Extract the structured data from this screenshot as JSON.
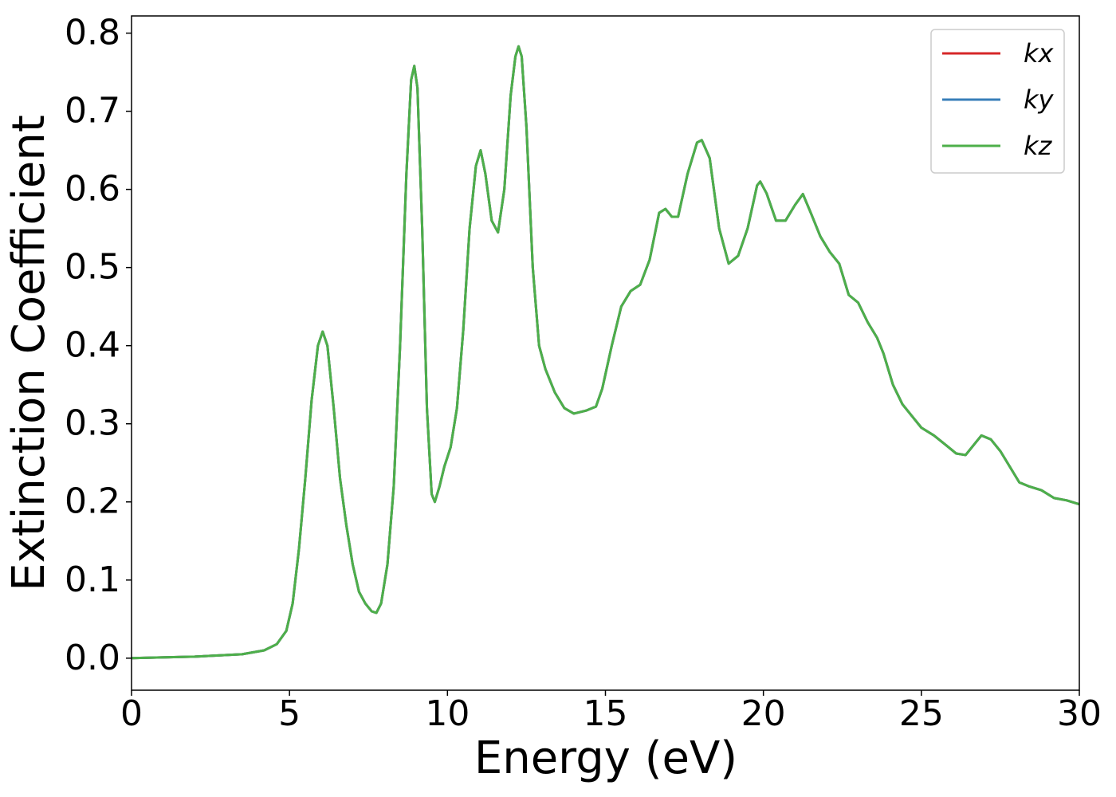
{
  "chart_data": {
    "type": "line",
    "x_label": "Energy (eV)",
    "y_label": "Extinction Coefficient",
    "x": [
      0,
      2,
      3.5,
      4.2,
      4.6,
      4.9,
      5.1,
      5.3,
      5.5,
      5.7,
      5.9,
      6.05,
      6.2,
      6.4,
      6.6,
      6.8,
      7.0,
      7.2,
      7.4,
      7.6,
      7.75,
      7.9,
      8.1,
      8.3,
      8.5,
      8.7,
      8.85,
      8.95,
      9.05,
      9.2,
      9.35,
      9.5,
      9.6,
      9.75,
      9.9,
      10.1,
      10.3,
      10.5,
      10.7,
      10.9,
      11.05,
      11.2,
      11.4,
      11.6,
      11.8,
      12.0,
      12.15,
      12.25,
      12.35,
      12.5,
      12.7,
      12.9,
      13.1,
      13.4,
      13.7,
      14.0,
      14.4,
      14.7,
      14.9,
      15.2,
      15.5,
      15.8,
      16.1,
      16.4,
      16.7,
      16.9,
      17.1,
      17.3,
      17.6,
      17.9,
      18.05,
      18.3,
      18.6,
      18.9,
      19.2,
      19.5,
      19.8,
      19.9,
      20.1,
      20.4,
      20.7,
      21.0,
      21.25,
      21.5,
      21.8,
      22.1,
      22.4,
      22.7,
      23.0,
      23.3,
      23.6,
      23.8,
      24.1,
      24.4,
      24.7,
      25.0,
      25.4,
      25.8,
      26.1,
      26.4,
      26.7,
      26.9,
      27.2,
      27.5,
      27.8,
      28.1,
      28.4,
      28.8,
      29.2,
      29.6,
      30.0
    ],
    "series": [
      {
        "name": "kx",
        "color": "#d62728",
        "values": [
          0,
          0.002,
          0.005,
          0.01,
          0.018,
          0.035,
          0.07,
          0.14,
          0.23,
          0.33,
          0.4,
          0.418,
          0.4,
          0.32,
          0.23,
          0.17,
          0.12,
          0.085,
          0.07,
          0.06,
          0.058,
          0.07,
          0.12,
          0.22,
          0.4,
          0.62,
          0.74,
          0.758,
          0.73,
          0.55,
          0.32,
          0.21,
          0.2,
          0.22,
          0.245,
          0.27,
          0.32,
          0.42,
          0.55,
          0.63,
          0.65,
          0.62,
          0.56,
          0.545,
          0.6,
          0.72,
          0.77,
          0.783,
          0.77,
          0.68,
          0.5,
          0.4,
          0.37,
          0.34,
          0.32,
          0.313,
          0.317,
          0.322,
          0.345,
          0.4,
          0.45,
          0.47,
          0.478,
          0.51,
          0.57,
          0.575,
          0.565,
          0.565,
          0.62,
          0.66,
          0.663,
          0.64,
          0.55,
          0.505,
          0.515,
          0.55,
          0.605,
          0.61,
          0.595,
          0.56,
          0.56,
          0.58,
          0.594,
          0.57,
          0.54,
          0.52,
          0.505,
          0.465,
          0.455,
          0.43,
          0.41,
          0.39,
          0.35,
          0.325,
          0.31,
          0.295,
          0.285,
          0.272,
          0.262,
          0.26,
          0.275,
          0.285,
          0.28,
          0.265,
          0.245,
          0.225,
          0.22,
          0.215,
          0.205,
          0.202,
          0.197
        ]
      },
      {
        "name": "ky",
        "color": "#377eb8",
        "values": [
          0,
          0.002,
          0.005,
          0.01,
          0.018,
          0.035,
          0.07,
          0.14,
          0.23,
          0.33,
          0.4,
          0.418,
          0.4,
          0.32,
          0.23,
          0.17,
          0.12,
          0.085,
          0.07,
          0.06,
          0.058,
          0.07,
          0.12,
          0.22,
          0.4,
          0.62,
          0.74,
          0.758,
          0.73,
          0.55,
          0.32,
          0.21,
          0.2,
          0.22,
          0.245,
          0.27,
          0.32,
          0.42,
          0.55,
          0.63,
          0.65,
          0.62,
          0.56,
          0.545,
          0.6,
          0.72,
          0.77,
          0.783,
          0.77,
          0.68,
          0.5,
          0.4,
          0.37,
          0.34,
          0.32,
          0.313,
          0.317,
          0.322,
          0.345,
          0.4,
          0.45,
          0.47,
          0.478,
          0.51,
          0.57,
          0.575,
          0.565,
          0.565,
          0.62,
          0.66,
          0.663,
          0.64,
          0.55,
          0.505,
          0.515,
          0.55,
          0.605,
          0.61,
          0.595,
          0.56,
          0.56,
          0.58,
          0.594,
          0.57,
          0.54,
          0.52,
          0.505,
          0.465,
          0.455,
          0.43,
          0.41,
          0.39,
          0.35,
          0.325,
          0.31,
          0.295,
          0.285,
          0.272,
          0.262,
          0.26,
          0.275,
          0.285,
          0.28,
          0.265,
          0.245,
          0.225,
          0.22,
          0.215,
          0.205,
          0.202,
          0.197
        ]
      },
      {
        "name": "kz",
        "color": "#4daf4a",
        "values": [
          0,
          0.002,
          0.005,
          0.01,
          0.018,
          0.035,
          0.07,
          0.14,
          0.23,
          0.33,
          0.4,
          0.418,
          0.4,
          0.32,
          0.23,
          0.17,
          0.12,
          0.085,
          0.07,
          0.06,
          0.058,
          0.07,
          0.12,
          0.22,
          0.4,
          0.62,
          0.74,
          0.758,
          0.73,
          0.55,
          0.32,
          0.21,
          0.2,
          0.22,
          0.245,
          0.27,
          0.32,
          0.42,
          0.55,
          0.63,
          0.65,
          0.62,
          0.56,
          0.545,
          0.6,
          0.72,
          0.77,
          0.783,
          0.77,
          0.68,
          0.5,
          0.4,
          0.37,
          0.34,
          0.32,
          0.313,
          0.317,
          0.322,
          0.345,
          0.4,
          0.45,
          0.47,
          0.478,
          0.51,
          0.57,
          0.575,
          0.565,
          0.565,
          0.62,
          0.66,
          0.663,
          0.64,
          0.55,
          0.505,
          0.515,
          0.55,
          0.605,
          0.61,
          0.595,
          0.56,
          0.56,
          0.58,
          0.594,
          0.57,
          0.54,
          0.52,
          0.505,
          0.465,
          0.455,
          0.43,
          0.41,
          0.39,
          0.35,
          0.325,
          0.31,
          0.295,
          0.285,
          0.272,
          0.262,
          0.26,
          0.275,
          0.285,
          0.28,
          0.265,
          0.245,
          0.225,
          0.22,
          0.215,
          0.205,
          0.202,
          0.197
        ]
      }
    ],
    "xlim": [
      0,
      30
    ],
    "xticks": [
      0,
      5,
      10,
      15,
      20,
      25,
      30
    ],
    "ylim": [
      -0.041,
      0.822
    ],
    "yticks": [
      {
        "value": 0,
        "label": "0.0"
      },
      0.1,
      0.2,
      0.3,
      0.4,
      0.5,
      0.6,
      0.7,
      0.8
    ],
    "grid": false,
    "legend": "upper right"
  }
}
